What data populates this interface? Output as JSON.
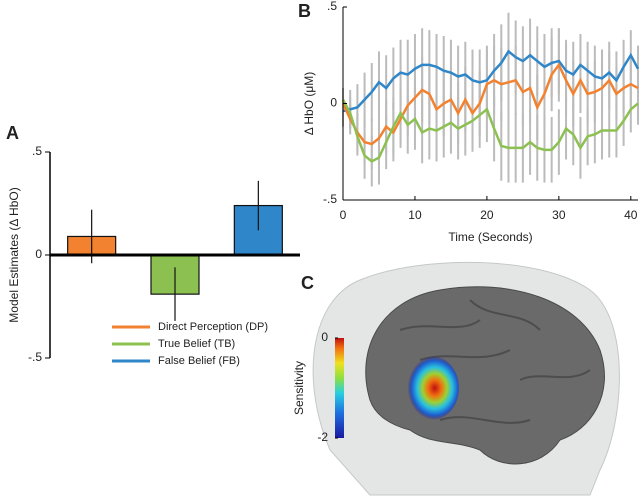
{
  "chart_data": [
    {
      "type": "bar",
      "panel": "A",
      "ylabel": "Model Estimates (Δ HbO)",
      "ylim": [
        -0.5,
        0.5
      ],
      "yticks": [
        {
          "value": 0.5,
          "label": ".5"
        },
        0,
        {
          "value": -0.5,
          "label": "-.5"
        }
      ],
      "series": [
        {
          "name": "Direct Perception (DP)",
          "color": "#f28230",
          "values": [
            0.09
          ],
          "errors": [
            0.13
          ]
        },
        {
          "name": "True Belief (TB)",
          "color": "#8cc152",
          "values": [
            -0.19
          ],
          "errors": [
            0.13
          ]
        },
        {
          "name": "False Belief (FB)",
          "color": "#2f86c8",
          "values": [
            0.24
          ],
          "errors": [
            0.12
          ]
        }
      ]
    },
    {
      "type": "line",
      "panel": "B",
      "ylabel": "Δ HbO (μM)",
      "xlabel": "Time (Seconds)",
      "xlim": [
        0,
        41
      ],
      "xticks": [
        0,
        10,
        20,
        30,
        40
      ],
      "ylim": [
        -0.5,
        0.5
      ],
      "yticks": [
        {
          "value": 0.5,
          "label": ".5"
        },
        0,
        {
          "value": -0.5,
          "label": "-.5"
        }
      ],
      "x": [
        0,
        1,
        2,
        3,
        4,
        5,
        6,
        7,
        8,
        9,
        10,
        11,
        12,
        13,
        14,
        15,
        16,
        17,
        18,
        19,
        20,
        21,
        22,
        23,
        24,
        25,
        26,
        27,
        28,
        29,
        30,
        31,
        32,
        33,
        34,
        35,
        36,
        37,
        38,
        39,
        40,
        41
      ],
      "series": [
        {
          "color": "#2f86c8",
          "values": [
            -0.04,
            -0.03,
            -0.02,
            0.02,
            0.06,
            0.11,
            0.08,
            0.13,
            0.16,
            0.15,
            0.18,
            0.2,
            0.2,
            0.19,
            0.17,
            0.16,
            0.14,
            0.15,
            0.12,
            0.11,
            0.12,
            0.17,
            0.21,
            0.27,
            0.24,
            0.22,
            0.25,
            0.22,
            0.19,
            0.21,
            0.22,
            0.17,
            0.15,
            0.2,
            0.17,
            0.14,
            0.13,
            0.16,
            0.12,
            0.19,
            0.25,
            0.18
          ],
          "errors": [
            0.08,
            0.1,
            0.12,
            0.14,
            0.15,
            0.16,
            0.17,
            0.16,
            0.17,
            0.18,
            0.18,
            0.19,
            0.18,
            0.17,
            0.18,
            0.17,
            0.16,
            0.17,
            0.16,
            0.17,
            0.18,
            0.19,
            0.2,
            0.2,
            0.19,
            0.18,
            0.19,
            0.18,
            0.17,
            0.18,
            0.17,
            0.16,
            0.17,
            0.16,
            0.15,
            0.16,
            0.15,
            0.16,
            0.15,
            0.14,
            0.13,
            0.12
          ]
        },
        {
          "color": "#f28230",
          "values": [
            0,
            -0.08,
            -0.15,
            -0.2,
            -0.21,
            -0.18,
            -0.12,
            -0.15,
            -0.08,
            -0.01,
            0.03,
            0.07,
            0.05,
            -0.03,
            0,
            0.02,
            -0.05,
            0.02,
            -0.05,
            0,
            0.1,
            0.12,
            0.1,
            0.11,
            0.12,
            0.06,
            0.08,
            -0.02,
            0.05,
            0.15,
            0.2,
            0.12,
            0.05,
            0.12,
            0.05,
            0.06,
            0.08,
            0.12,
            0.05,
            0.08,
            0.1,
            0.08
          ],
          "errors": [
            0.06,
            0.08,
            0.1,
            0.12,
            0.13,
            0.14,
            0.14,
            0.15,
            0.15,
            0.16,
            0.16,
            0.17,
            0.16,
            0.16,
            0.17,
            0.16,
            0.16,
            0.17,
            0.16,
            0.17,
            0.18,
            0.18,
            0.19,
            0.19,
            0.18,
            0.18,
            0.18,
            0.17,
            0.18,
            0.19,
            0.19,
            0.18,
            0.17,
            0.17,
            0.16,
            0.16,
            0.15,
            0.15,
            0.14,
            0.13,
            0.12,
            0.11
          ]
        },
        {
          "color": "#8cc152",
          "values": [
            0.02,
            -0.05,
            -0.17,
            -0.27,
            -0.3,
            -0.28,
            -0.2,
            -0.12,
            -0.05,
            -0.11,
            -0.08,
            -0.15,
            -0.13,
            -0.14,
            -0.12,
            -0.1,
            -0.13,
            -0.11,
            -0.09,
            -0.06,
            -0.03,
            -0.13,
            -0.22,
            -0.23,
            -0.23,
            -0.23,
            -0.2,
            -0.23,
            -0.24,
            -0.24,
            -0.2,
            -0.13,
            -0.16,
            -0.23,
            -0.17,
            -0.16,
            -0.14,
            -0.14,
            -0.14,
            -0.09,
            -0.03,
            0
          ],
          "errors": [
            0.06,
            0.08,
            0.1,
            0.12,
            0.13,
            0.14,
            0.14,
            0.15,
            0.15,
            0.15,
            0.16,
            0.16,
            0.16,
            0.16,
            0.16,
            0.16,
            0.16,
            0.16,
            0.16,
            0.17,
            0.17,
            0.17,
            0.18,
            0.18,
            0.18,
            0.18,
            0.17,
            0.17,
            0.17,
            0.17,
            0.17,
            0.16,
            0.16,
            0.16,
            0.15,
            0.15,
            0.15,
            0.14,
            0.14,
            0.13,
            0.12,
            0.11
          ]
        }
      ]
    },
    {
      "type": "colorbar",
      "panel": "C",
      "label": "Sensitivity",
      "lim": [
        -2,
        0
      ],
      "ticks": [
        0,
        -2
      ]
    }
  ]
}
